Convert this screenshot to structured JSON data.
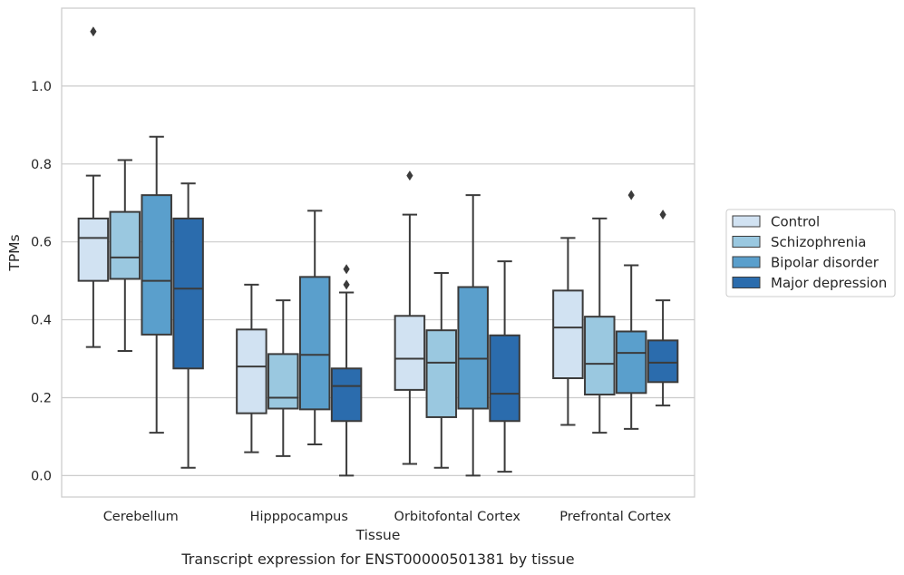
{
  "caption": "Transcript expression for ENST00000501381 by tissue",
  "chart_data": {
    "type": "box",
    "xlabel": "Tissue",
    "ylabel": "TPMs",
    "ylim": [
      -0.055,
      1.2
    ],
    "yticks": [
      0.0,
      0.2,
      0.4,
      0.6,
      0.8,
      1.0
    ],
    "ytick_labels": [
      "0.0",
      "0.2",
      "0.4",
      "0.6",
      "0.8",
      "1.0"
    ],
    "grid": true,
    "legend_position": "right",
    "categories": [
      "Cerebellum",
      "Hipppocampus",
      "Orbitofontal Cortex",
      "Prefrontal Cortex"
    ],
    "series": [
      {
        "name": "Control",
        "color": "#d1e2f2",
        "boxes": [
          {
            "whislo": 0.33,
            "q1": 0.5,
            "med": 0.61,
            "q3": 0.66,
            "whishi": 0.77,
            "fliers": [
              1.14
            ]
          },
          {
            "whislo": 0.06,
            "q1": 0.16,
            "med": 0.28,
            "q3": 0.375,
            "whishi": 0.49,
            "fliers": []
          },
          {
            "whislo": 0.03,
            "q1": 0.22,
            "med": 0.3,
            "q3": 0.41,
            "whishi": 0.67,
            "fliers": [
              0.77
            ]
          },
          {
            "whislo": 0.13,
            "q1": 0.25,
            "med": 0.38,
            "q3": 0.475,
            "whishi": 0.61,
            "fliers": []
          }
        ]
      },
      {
        "name": "Schizophrenia",
        "color": "#9ac8e0",
        "boxes": [
          {
            "whislo": 0.32,
            "q1": 0.505,
            "med": 0.56,
            "q3": 0.677,
            "whishi": 0.81,
            "fliers": []
          },
          {
            "whislo": 0.05,
            "q1": 0.172,
            "med": 0.2,
            "q3": 0.312,
            "whishi": 0.45,
            "fliers": []
          },
          {
            "whislo": 0.02,
            "q1": 0.15,
            "med": 0.29,
            "q3": 0.373,
            "whishi": 0.52,
            "fliers": []
          },
          {
            "whislo": 0.11,
            "q1": 0.208,
            "med": 0.287,
            "q3": 0.408,
            "whishi": 0.66,
            "fliers": []
          }
        ]
      },
      {
        "name": "Bipolar disorder",
        "color": "#5a9fcc",
        "boxes": [
          {
            "whislo": 0.11,
            "q1": 0.362,
            "med": 0.5,
            "q3": 0.72,
            "whishi": 0.87,
            "fliers": []
          },
          {
            "whislo": 0.08,
            "q1": 0.17,
            "med": 0.31,
            "q3": 0.51,
            "whishi": 0.68,
            "fliers": []
          },
          {
            "whislo": 0.0,
            "q1": 0.172,
            "med": 0.3,
            "q3": 0.484,
            "whishi": 0.72,
            "fliers": []
          },
          {
            "whislo": 0.12,
            "q1": 0.212,
            "med": 0.315,
            "q3": 0.37,
            "whishi": 0.54,
            "fliers": [
              0.72
            ]
          }
        ]
      },
      {
        "name": "Major depression",
        "color": "#2b6cad",
        "boxes": [
          {
            "whislo": 0.02,
            "q1": 0.275,
            "med": 0.48,
            "q3": 0.66,
            "whishi": 0.75,
            "fliers": []
          },
          {
            "whislo": 0.0,
            "q1": 0.14,
            "med": 0.23,
            "q3": 0.275,
            "whishi": 0.47,
            "fliers": [
              0.49,
              0.53
            ]
          },
          {
            "whislo": 0.01,
            "q1": 0.14,
            "med": 0.21,
            "q3": 0.36,
            "whishi": 0.55,
            "fliers": []
          },
          {
            "whislo": 0.18,
            "q1": 0.24,
            "med": 0.29,
            "q3": 0.347,
            "whishi": 0.45,
            "fliers": [
              0.67
            ]
          }
        ]
      }
    ]
  }
}
